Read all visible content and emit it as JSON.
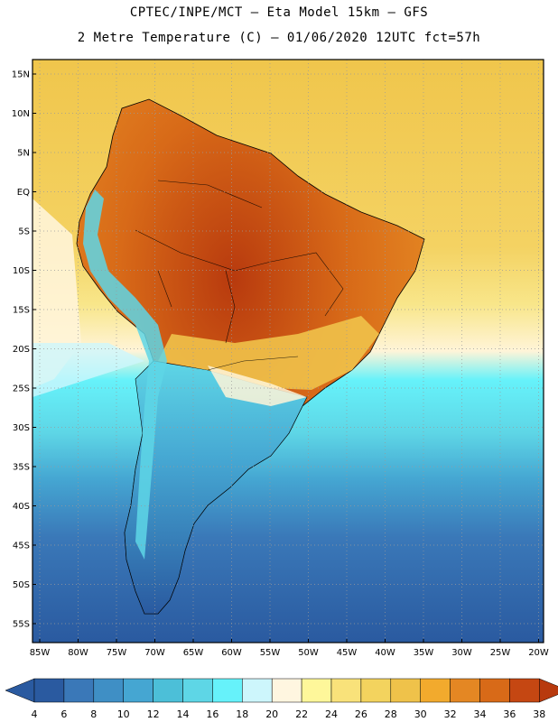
{
  "header": {
    "line1": "CPTEC/INPE/MCT –  Eta Model 15km – GFS",
    "line2": "2 Metre Temperature (C) – 01/06/2020 12UTC fct=57h"
  },
  "axes": {
    "lat_labels": [
      "15N",
      "10N",
      "5N",
      "EQ",
      "5S",
      "10S",
      "15S",
      "20S",
      "25S",
      "30S",
      "35S",
      "40S",
      "45S",
      "50S",
      "55S"
    ],
    "lon_labels": [
      "85W",
      "80W",
      "75W",
      "70W",
      "65W",
      "60W",
      "55W",
      "50W",
      "45W",
      "40W",
      "35W",
      "30W",
      "25W",
      "20W"
    ]
  },
  "colorbar": {
    "labels": [
      "4",
      "6",
      "8",
      "10",
      "12",
      "14",
      "16",
      "18",
      "20",
      "22",
      "24",
      "26",
      "28",
      "30",
      "32",
      "34",
      "36",
      "38"
    ],
    "colors": [
      "#2a5aa0",
      "#3a78b8",
      "#3f8fc5",
      "#45a6d2",
      "#4cbfd8",
      "#5ed6e6",
      "#66f2fa",
      "#cdf6fc",
      "#fff6e0",
      "#fef79a",
      "#f9e27a",
      "#f3d35e",
      "#efc24a",
      "#f2aa2d",
      "#e48723",
      "#d86a18",
      "#c54712",
      "#b83a0e"
    ]
  },
  "chart_data": {
    "type": "heatmap",
    "title": "2 Metre Temperature (C)",
    "model": "Eta Model 15km – GFS",
    "valid": "01/06/2020 12UTC fct=57h",
    "lon_range": [
      -86,
      -19
    ],
    "lat_range": [
      16.5,
      -58
    ],
    "units": "C",
    "levels": [
      4,
      6,
      8,
      10,
      12,
      14,
      16,
      18,
      20,
      22,
      24,
      26,
      28,
      30,
      32,
      34,
      36,
      38
    ]
  }
}
